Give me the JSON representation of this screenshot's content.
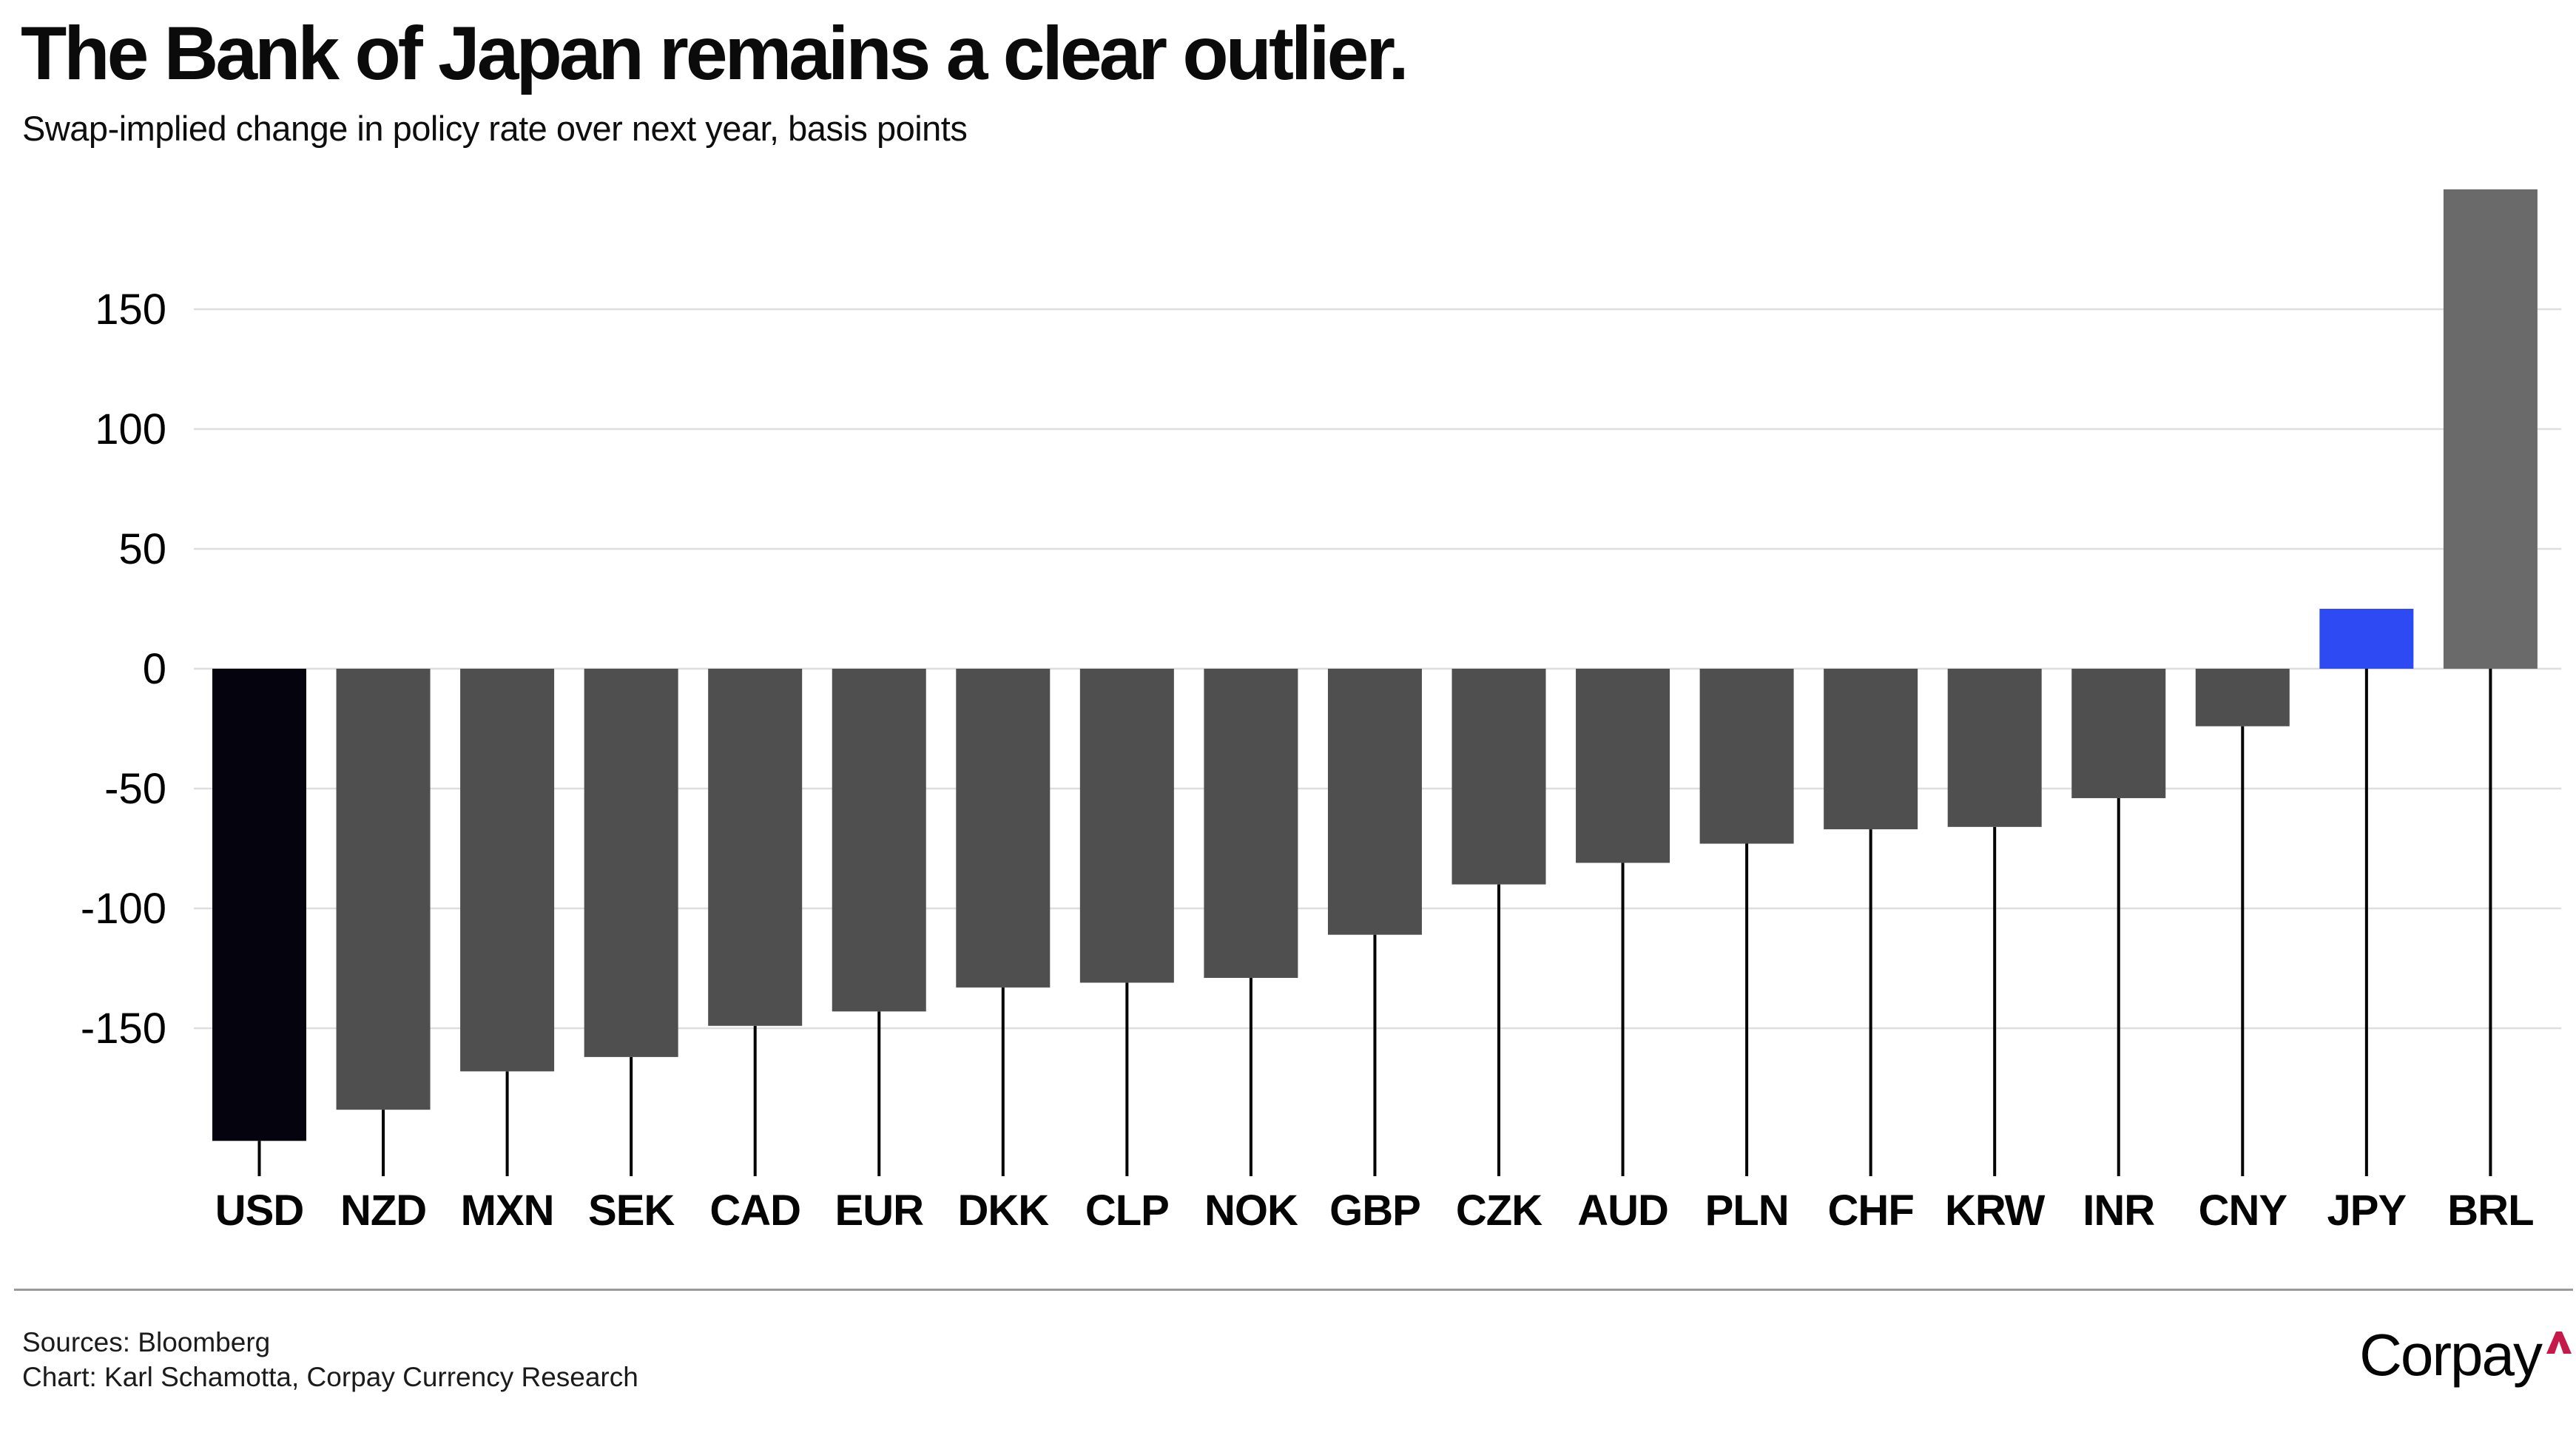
{
  "chart_data": {
    "type": "bar",
    "title": "The Bank of Japan remains a clear outlier.",
    "subtitle": "Swap-implied change in policy rate over next year, basis points",
    "xlabel": "",
    "ylabel": "basis points",
    "categories": [
      "USD",
      "NZD",
      "MXN",
      "SEK",
      "CAD",
      "EUR",
      "DKK",
      "CLP",
      "NOK",
      "GBP",
      "CZK",
      "AUD",
      "PLN",
      "CHF",
      "KRW",
      "INR",
      "CNY",
      "JPY",
      "BRL"
    ],
    "values": [
      -197,
      -184,
      -168,
      -162,
      -149,
      -143,
      -133,
      -131,
      -129,
      -111,
      -90,
      -81,
      -73,
      -67,
      -66,
      -54,
      -24,
      25,
      200
    ],
    "yticks": [
      150,
      100,
      50,
      0,
      -50,
      -100,
      -150
    ],
    "ylim": [
      -200,
      200
    ],
    "grid": true,
    "legend": "none",
    "bar_colors": {
      "default": "#4f4f4f",
      "USD": "#05030e",
      "JPY": "#2e4af3",
      "BRL": "#6a6a6a"
    },
    "gridline_color": "#dedede",
    "stem_color": "#000000",
    "axis_text_color": "#000000"
  },
  "footer": {
    "sources": "Sources: Bloomberg",
    "credit": "Chart: Karl Schamotta, Corpay Currency Research",
    "logo_text": "Corpay",
    "logo_caret_color": "#c41949"
  }
}
